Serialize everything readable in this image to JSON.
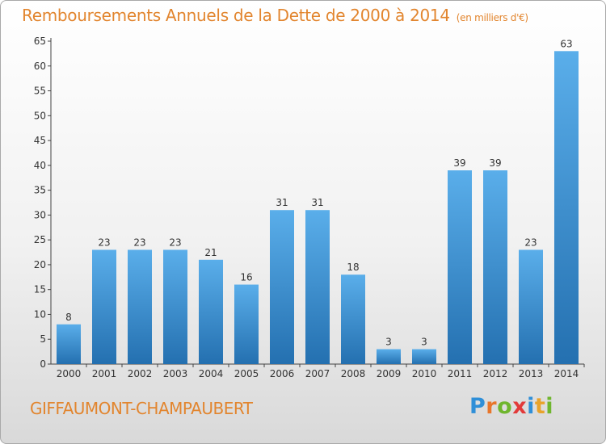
{
  "title": "Remboursements Annuels de la Dette de 2000 à 2014",
  "subtitle": "(en milliers d'€)",
  "place_name": "GIFFAUMONT-CHAMPAUBERT",
  "logo": {
    "letters": [
      "P",
      "r",
      "o",
      "x",
      "i",
      "t",
      "i"
    ],
    "colors": [
      "#2f8fd8",
      "#e8762b",
      "#6fb62e",
      "#e23a3a",
      "#2f8fd8",
      "#e8a32b",
      "#6fb62e"
    ]
  },
  "colors": {
    "bar_light": "#5aaeea",
    "bar_dark": "#2470b0",
    "text": "#333333",
    "accent": "#e2852e"
  },
  "chart_data": {
    "type": "bar",
    "categories": [
      "2000",
      "2001",
      "2002",
      "2003",
      "2004",
      "2005",
      "2006",
      "2007",
      "2008",
      "2009",
      "2010",
      "2011",
      "2012",
      "2013",
      "2014"
    ],
    "values": [
      8,
      23,
      23,
      23,
      21,
      16,
      31,
      31,
      18,
      3,
      3,
      39,
      39,
      23,
      63
    ],
    "title": "Remboursements Annuels de la Dette de 2000 à 2014",
    "ylim": [
      0,
      65
    ],
    "yticks": [
      0,
      5,
      10,
      15,
      20,
      25,
      30,
      35,
      40,
      45,
      50,
      55,
      60,
      65
    ],
    "grid": false,
    "data_labels": true
  }
}
